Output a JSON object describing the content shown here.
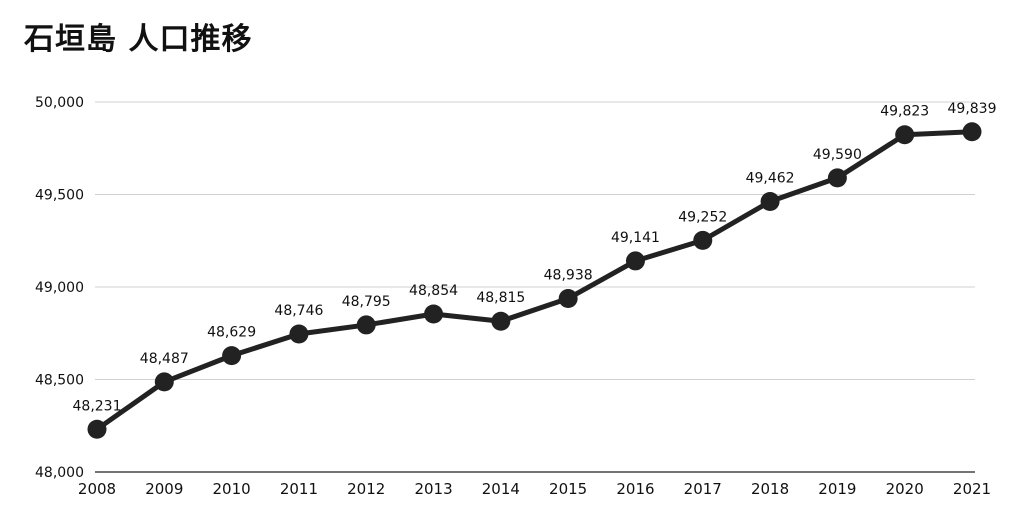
{
  "chart_data": {
    "type": "line",
    "title": "石垣島 人口推移",
    "xlabel": "",
    "ylabel": "",
    "x": [
      "2008",
      "2009",
      "2010",
      "2011",
      "2012",
      "2013",
      "2014",
      "2015",
      "2016",
      "2017",
      "2018",
      "2019",
      "2020",
      "2021"
    ],
    "values": [
      48231,
      48487,
      48629,
      48746,
      48795,
      48854,
      48815,
      48938,
      49141,
      49252,
      49462,
      49590,
      49823,
      49839
    ],
    "data_labels": [
      "48,231",
      "48,487",
      "48,629",
      "48,746",
      "48,795",
      "48,854",
      "48,815",
      "48,938",
      "49,141",
      "49,252",
      "49,462",
      "49,590",
      "49,823",
      "49,839"
    ],
    "yticks": [
      48000,
      48500,
      49000,
      49500,
      50000
    ],
    "ytick_labels": [
      "48,000",
      "48,500",
      "49,000",
      "49,500",
      "50,000"
    ],
    "ylim": [
      48000,
      50000
    ],
    "grid": true,
    "legend": "none",
    "line_color": "#222222"
  }
}
